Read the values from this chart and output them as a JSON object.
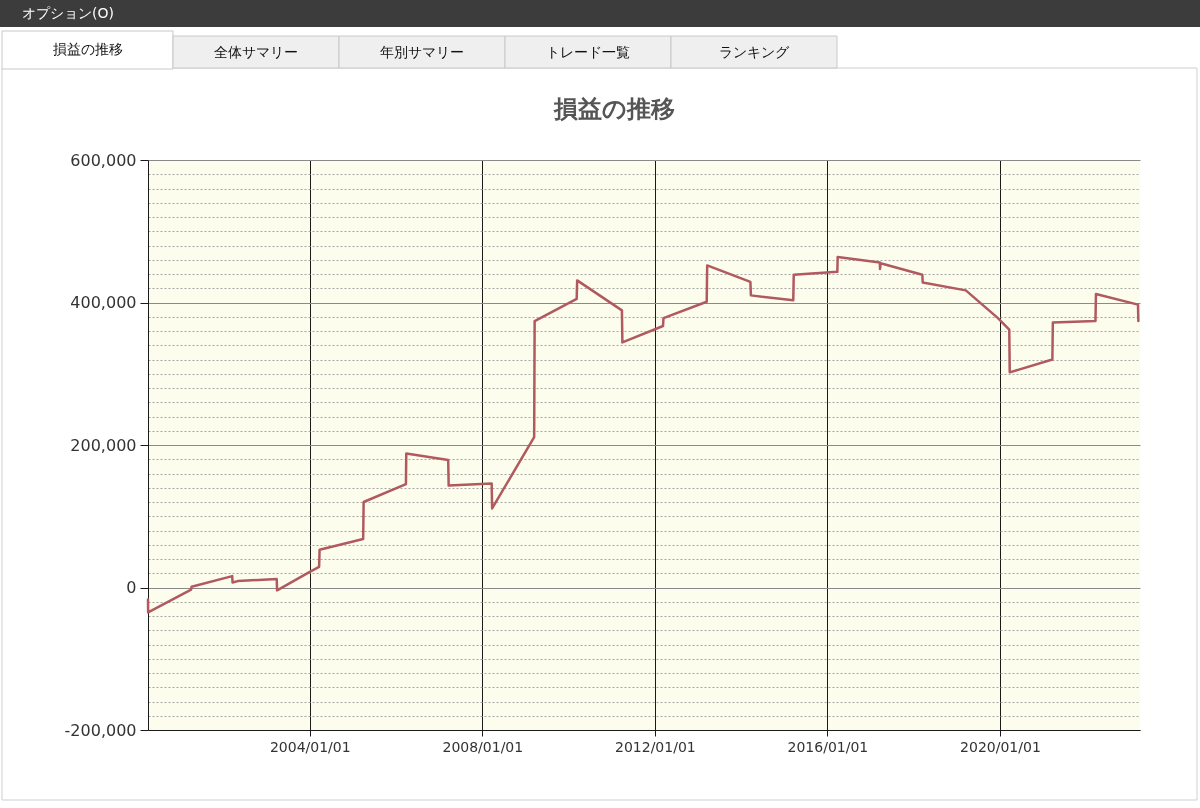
{
  "chart_data": {
    "type": "line",
    "title": "損益の推移",
    "annotations": [
      "オプション(O)",
      "損益の推移",
      "全体サマリー",
      "年別サマリー",
      "トレード一覧",
      "ランキング"
    ],
    "x": [
      "2000-04-01",
      "2000-04-02",
      "2001-04-01",
      "2001-04-05",
      "2002-03-15",
      "2002-03-18",
      "2002-05-01",
      "2003-03-27",
      "2003-03-30",
      "2004-01-01",
      "2004-03-20",
      "2004-03-24",
      "2005-03-28",
      "2005-04-01",
      "2006-03-25",
      "2006-03-28",
      "2007-03-18",
      "2007-03-22",
      "2008-03-20",
      "2008-03-24",
      "2009-03-15",
      "2009-03-19",
      "2010-03-10",
      "2010-03-14",
      "2011-03-28",
      "2011-04-01",
      "2012-03-10",
      "2012-03-14",
      "2013-03-15",
      "2013-03-19",
      "2014-03-20",
      "2014-03-24",
      "2015-03-18",
      "2015-03-22",
      "2016-03-25",
      "2016-03-28",
      "2017-03-20",
      "2017-03-22",
      "2017-03-26",
      "2018-03-15",
      "2018-03-18",
      "2019-03-18",
      "2019-12-15",
      "2020-03-20",
      "2020-03-24",
      "2021-03-20",
      "2021-03-24",
      "2022-03-20",
      "2022-03-24",
      "2023-03-15",
      "2023-03-18"
    ],
    "values": [
      -17000,
      -35000,
      -3000,
      1000,
      16000,
      7000,
      9000,
      12000,
      -4000,
      22000,
      29000,
      53000,
      68000,
      120000,
      145000,
      188000,
      179000,
      143000,
      146000,
      111000,
      211000,
      374000,
      405000,
      431000,
      389000,
      344000,
      367000,
      378000,
      401000,
      452000,
      429000,
      410000,
      403000,
      439000,
      443000,
      464000,
      456000,
      447000,
      455000,
      439000,
      428000,
      417000,
      378000,
      362000,
      302000,
      320000,
      372000,
      374000,
      412000,
      397000,
      374000
    ],
    "color": "#b05a5f",
    "xlim": [
      "2000-04-01",
      "2023-04-01"
    ],
    "xticks": [
      {
        "value": "2004-01-01",
        "label": "2004/01/01"
      },
      {
        "value": "2008-01-01",
        "label": "2008/01/01"
      },
      {
        "value": "2012-01-01",
        "label": "2012/01/01"
      },
      {
        "value": "2016-01-01",
        "label": "2016/01/01"
      },
      {
        "value": "2020-01-01",
        "label": "2020/01/01"
      }
    ],
    "ylim": [
      -200000,
      600000
    ],
    "yticks": [
      {
        "value": -200000,
        "label": "-200,000"
      },
      {
        "value": -180000,
        "label": null
      },
      {
        "value": -160000,
        "label": null
      },
      {
        "value": -140000,
        "label": null
      },
      {
        "value": -120000,
        "label": null
      },
      {
        "value": -100000,
        "label": null
      },
      {
        "value": -80000,
        "label": null
      },
      {
        "value": -60000,
        "label": null
      },
      {
        "value": -40000,
        "label": null
      },
      {
        "value": -20000,
        "label": null
      },
      0,
      {
        "value": 20000,
        "label": null
      },
      {
        "value": 40000,
        "label": null
      },
      {
        "value": 60000,
        "label": null
      },
      {
        "value": 80000,
        "label": null
      },
      {
        "value": 100000,
        "label": null
      },
      {
        "value": 120000,
        "label": null
      },
      {
        "value": 140000,
        "label": null
      },
      {
        "value": 160000,
        "label": null
      },
      {
        "value": 180000,
        "label": null
      },
      {
        "value": 200000,
        "label": "200,000"
      },
      {
        "value": 220000,
        "label": null
      },
      {
        "value": 240000,
        "label": null
      },
      {
        "value": 260000,
        "label": null
      },
      {
        "value": 280000,
        "label": null
      },
      {
        "value": 300000,
        "label": null
      },
      {
        "value": 320000,
        "label": null
      },
      {
        "value": 340000,
        "label": null
      },
      {
        "value": 360000,
        "label": null
      },
      {
        "value": 380000,
        "label": null
      },
      {
        "value": 400000,
        "label": "400,000"
      },
      {
        "value": 420000,
        "label": null
      },
      {
        "value": 440000,
        "label": null
      },
      {
        "value": 460000,
        "label": null
      },
      {
        "value": 480000,
        "label": null
      },
      {
        "value": 500000,
        "label": null
      },
      {
        "value": 520000,
        "label": null
      },
      {
        "value": 540000,
        "label": null
      },
      {
        "value": 560000,
        "label": null
      },
      {
        "value": 580000,
        "label": null
      },
      {
        "value": 600000,
        "label": "600,000"
      }
    ],
    "grid": true
  }
}
